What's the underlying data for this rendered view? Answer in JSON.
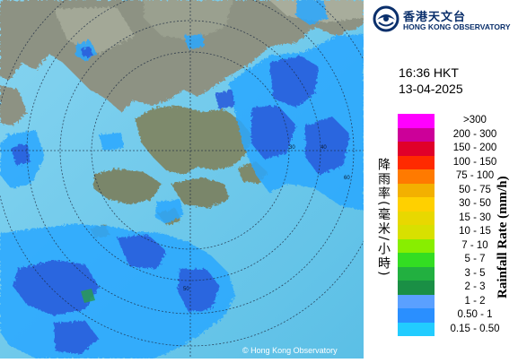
{
  "logo": {
    "name_cn": "香港天文台",
    "name_en": "HONG KONG OBSERVATORY"
  },
  "timestamp": {
    "time": "16:36 HKT",
    "date": "13-04-2025"
  },
  "legend": {
    "title_cn": "降雨率(毫米/小時)",
    "title_en": "Rainfall Rate (mm/h)",
    "items": [
      {
        "label": ">300",
        "color": "#ff00ff"
      },
      {
        "label": "200 - 300",
        "color": "#cc0099"
      },
      {
        "label": "150 - 200",
        "color": "#e0002a"
      },
      {
        "label": "100 - 150",
        "color": "#ff2a00"
      },
      {
        "label": "75 - 100",
        "color": "#ff7a00"
      },
      {
        "label": "50 - 75",
        "color": "#f3b000"
      },
      {
        "label": "30 - 50",
        "color": "#ffd000"
      },
      {
        "label": "15 - 30",
        "color": "#e8d800"
      },
      {
        "label": "10 - 15",
        "color": "#d8e000"
      },
      {
        "label": "7 - 10",
        "color": "#88ee00"
      },
      {
        "label": "5 - 7",
        "color": "#33dd22"
      },
      {
        "label": "3 - 5",
        "color": "#22b040"
      },
      {
        "label": "2 - 3",
        "color": "#1a8f45"
      },
      {
        "label": "1 - 2",
        "color": "#5aa0ff"
      },
      {
        "label": "0.50 - 1",
        "color": "#2a8fff"
      },
      {
        "label": "0.15 - 0.50",
        "color": "#22ccff"
      }
    ]
  },
  "map": {
    "copyright": "© Hong Kong Observatory",
    "range_rings": [
      {
        "label": "30"
      },
      {
        "label": "40"
      },
      {
        "label": "50"
      },
      {
        "label": "60"
      }
    ],
    "colors": {
      "sea": "#6cc8ea",
      "land": "#8a8f7e",
      "rain_light": "#2aa8ff",
      "rain_moderate": "#2b62e0"
    }
  }
}
